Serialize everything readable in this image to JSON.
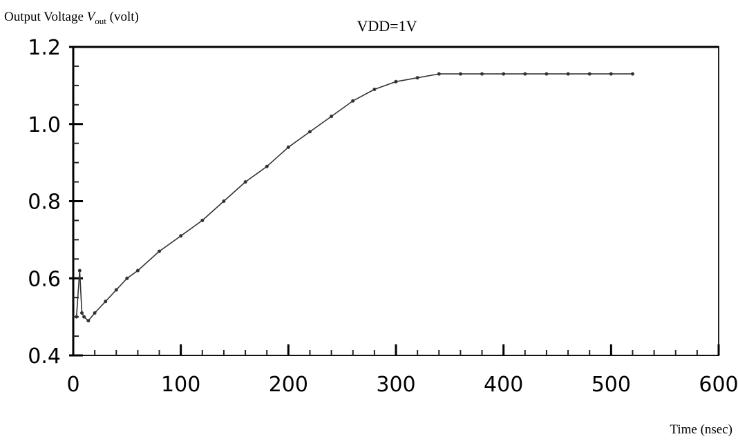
{
  "chart_data": {
    "type": "line",
    "title": "VDD=1V",
    "ylabel": {
      "prefix": "Output Voltage ",
      "symbol": "V",
      "subscript": "out",
      "suffix": " (volt)"
    },
    "xlabel": "Time (nsec)",
    "xlim": [
      0,
      600
    ],
    "ylim": [
      0.4,
      1.2
    ],
    "xticks": [
      0,
      100,
      200,
      300,
      400,
      500,
      600
    ],
    "xtick_labels": [
      "0",
      "100",
      "200",
      "300",
      "400",
      "500",
      "600"
    ],
    "yticks": [
      0.4,
      0.6,
      0.8,
      1.0,
      1.2
    ],
    "ytick_labels": [
      "0.4",
      "0.6",
      "0.8",
      "1.0",
      "1.2"
    ],
    "grid": false,
    "series": [
      {
        "x": [
          3,
          6,
          8,
          10,
          14,
          20,
          30,
          40,
          50,
          60,
          80,
          100,
          120,
          140,
          160,
          180,
          200,
          220,
          240,
          260,
          280,
          300,
          320,
          340,
          360,
          380,
          400,
          420,
          440,
          460,
          480,
          500,
          520
        ],
        "y": [
          0.5,
          0.62,
          0.51,
          0.5,
          0.49,
          0.51,
          0.54,
          0.57,
          0.6,
          0.62,
          0.67,
          0.71,
          0.75,
          0.8,
          0.85,
          0.89,
          0.94,
          0.98,
          1.02,
          1.06,
          1.09,
          1.11,
          1.12,
          1.13,
          1.13,
          1.13,
          1.13,
          1.13,
          1.13,
          1.13,
          1.13,
          1.13,
          1.13
        ]
      }
    ]
  }
}
